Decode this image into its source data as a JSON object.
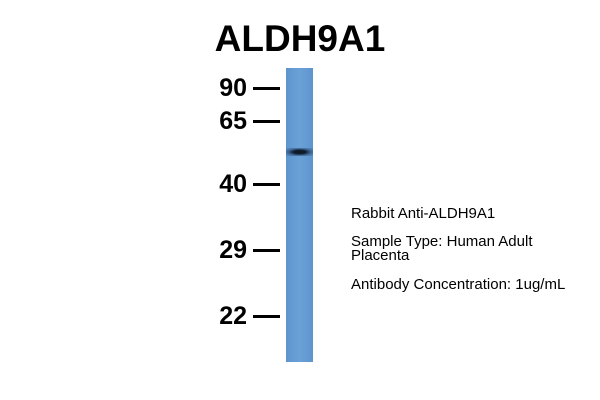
{
  "title": "ALDH9A1",
  "markers": [
    "90",
    "65",
    "40",
    "29",
    "22"
  ],
  "info": {
    "antibody": "Rabbit Anti-ALDH9A1",
    "sample_line1": "Sample Type: Human Adult",
    "sample_line2": "Placenta",
    "concentration": "Antibody Concentration: 1ug/mL"
  },
  "colors": {
    "lane": "#6aa2d8",
    "band": "#0d1a2a"
  }
}
